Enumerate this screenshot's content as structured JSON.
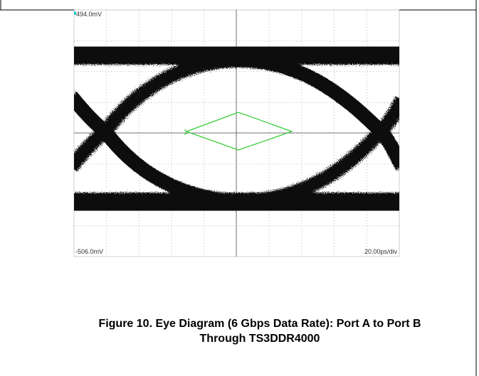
{
  "scope": {
    "top_label": "494.0mV",
    "bottom_label": "-506.0mV",
    "timebase_label": "20.00ps/div",
    "marker": "1"
  },
  "caption": {
    "line1": "Figure 10. Eye Diagram (6 Gbps Data Rate): Port A to Port B",
    "line2": "Through TS3DDR4000"
  }
}
